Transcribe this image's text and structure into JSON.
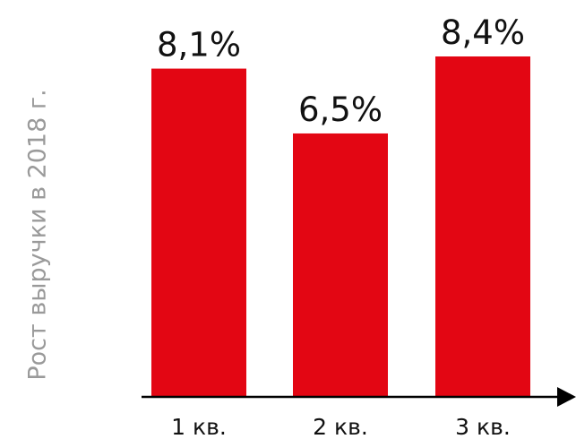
{
  "chart_data": {
    "type": "bar",
    "categories": [
      "1 кв.",
      "2 кв.",
      "3 кв."
    ],
    "values": [
      8.1,
      6.5,
      8.4
    ],
    "value_labels": [
      "8,1%",
      "6,5%",
      "8,4%"
    ],
    "ylabel": "Рост выручки в 2018 г.",
    "xlabel": "",
    "ylim": [
      0,
      8.4
    ],
    "grid": false,
    "bar_color": "#e30613",
    "axis_color": "#000000"
  }
}
